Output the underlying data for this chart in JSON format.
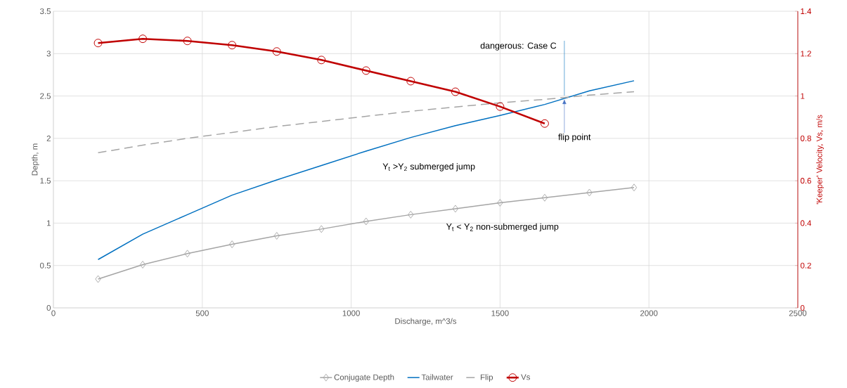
{
  "chart_data": {
    "type": "line",
    "xlabel": "Discharge, m^3/s",
    "ylabel": "Depth, m",
    "y2label": "'Keeper' Velocity, Vs, m/s",
    "xlim": [
      0,
      2500
    ],
    "xticks": [
      0,
      500,
      1000,
      1500,
      2000,
      2500
    ],
    "ylim": [
      0,
      3.5
    ],
    "yticks": [
      0,
      0.5,
      1,
      1.5,
      2,
      2.5,
      3,
      3.5
    ],
    "y2lim": [
      0,
      1.4
    ],
    "y2ticks": [
      0,
      0.2,
      0.4,
      0.6,
      0.8,
      1,
      1.2,
      1.4
    ],
    "grid": true,
    "legend": "bottom",
    "series": [
      {
        "name": "Conjugate Depth",
        "color": "#a5a5a5",
        "marker": "diamond",
        "line_style": "solid",
        "x": [
          150,
          300,
          450,
          600,
          750,
          900,
          1050,
          1200,
          1350,
          1500,
          1650,
          1800,
          1950
        ],
        "values": [
          0.34,
          0.51,
          0.64,
          0.75,
          0.85,
          0.93,
          1.02,
          1.1,
          1.17,
          1.24,
          1.3,
          1.36,
          1.42
        ]
      },
      {
        "name": "Tailwater",
        "color": "#0070c0",
        "marker": "none",
        "line_style": "solid",
        "x": [
          150,
          300,
          450,
          600,
          750,
          900,
          1050,
          1200,
          1350,
          1500,
          1650,
          1800,
          1950
        ],
        "values": [
          0.57,
          0.87,
          1.1,
          1.33,
          1.51,
          1.68,
          1.85,
          2.01,
          2.15,
          2.27,
          2.4,
          2.56,
          2.68
        ]
      },
      {
        "name": "Flip",
        "color": "#a5a5a5",
        "marker": "none",
        "line_style": "dashed",
        "x": [
          150,
          300,
          450,
          600,
          750,
          900,
          1050,
          1200,
          1350,
          1500,
          1650,
          1800,
          1950
        ],
        "values": [
          1.83,
          1.92,
          2.0,
          2.07,
          2.14,
          2.2,
          2.26,
          2.32,
          2.37,
          2.42,
          2.46,
          2.51,
          2.55
        ]
      },
      {
        "name": "Vs",
        "color": "#c00000",
        "marker": "circle",
        "line_style": "solid",
        "axis": "y2",
        "x": [
          150,
          300,
          450,
          600,
          750,
          900,
          1050,
          1200,
          1350,
          1500,
          1650
        ],
        "values": [
          1.25,
          1.27,
          1.26,
          1.24,
          1.21,
          1.17,
          1.12,
          1.07,
          1.02,
          0.95,
          0.87
        ]
      }
    ],
    "annotations": [
      {
        "text": "dangerous: Case C",
        "x": 1716,
        "y": 2.48
      },
      {
        "text": "flip point",
        "x": 1716,
        "y": 2.48
      },
      "Y$_{t}$ >Y$_{2}$ submerged jump",
      "Y$_{t}$ < Y$_{2}$ non-submerged jump"
    ]
  }
}
